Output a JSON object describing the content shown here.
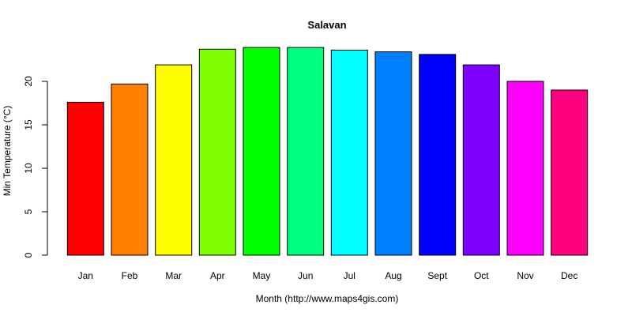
{
  "chart_data": {
    "type": "bar",
    "title": "Salavan",
    "xlabel": "Month (http://www.maps4gis.com)",
    "ylabel": "Min Temperature (°C)",
    "categories": [
      "Jan",
      "Feb",
      "Mar",
      "Apr",
      "May",
      "Jun",
      "Jul",
      "Aug",
      "Sept",
      "Oct",
      "Nov",
      "Dec"
    ],
    "values": [
      17.6,
      19.7,
      21.9,
      23.7,
      23.9,
      23.9,
      23.6,
      23.4,
      23.1,
      21.9,
      20.0,
      19.0
    ],
    "colors": [
      "#FF0000",
      "#FF8000",
      "#FFFF00",
      "#80FF00",
      "#00FF00",
      "#00FF80",
      "#00FFFF",
      "#0080FF",
      "#0000FF",
      "#8000FF",
      "#FF00FF",
      "#FF0080"
    ],
    "yticks": [
      0,
      5,
      10,
      15,
      20
    ],
    "ylim": [
      0,
      24.5
    ],
    "grid": false,
    "legend": "none"
  }
}
